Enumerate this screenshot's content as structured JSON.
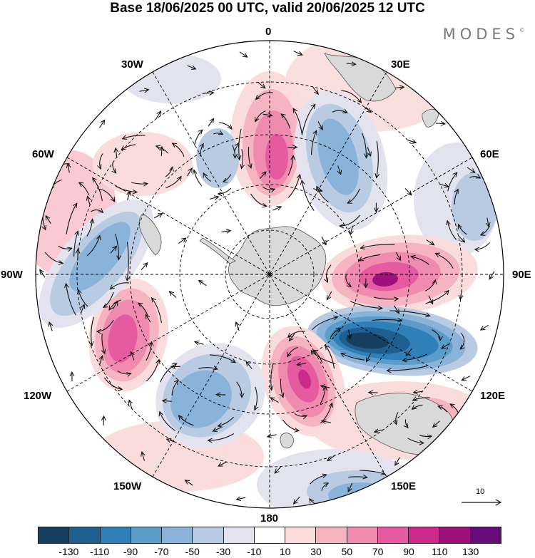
{
  "title": "Base 18/06/2025 00 UTC, valid 20/06/2025 12 UTC",
  "brand": {
    "name": "MODES",
    "mark": "©"
  },
  "map": {
    "projection": "south-polar-stereographic",
    "longitude_labels": {
      "lon_0": "0",
      "lon_30e": "30E",
      "lon_60e": "60E",
      "lon_90e": "90E",
      "lon_120e": "120E",
      "lon_150e": "150E",
      "lon_180": "180",
      "lon_150w": "150W",
      "lon_120w": "120W",
      "lon_90w": "90W",
      "lon_60w": "60W",
      "lon_30w": "30W"
    },
    "land_color": "#d9d9d9",
    "coastline_color": "#555555",
    "grid_color": "#000000"
  },
  "vector_reference": {
    "value": "10"
  },
  "colorbar": {
    "colors": [
      "#163e5e",
      "#1f5f8f",
      "#2f7fb9",
      "#5b9cc9",
      "#8ab3d9",
      "#b9cae3",
      "#e3e3ef",
      "#ffffff",
      "#fadcdc",
      "#f6b3c1",
      "#f08bb0",
      "#e65aa0",
      "#cc2a8c",
      "#9c117a",
      "#660c78"
    ],
    "tick_labels": [
      "-130",
      "-110",
      "-90",
      "-70",
      "-50",
      "-30",
      "-10",
      "10",
      "30",
      "50",
      "70",
      "90",
      "110",
      "130"
    ]
  }
}
